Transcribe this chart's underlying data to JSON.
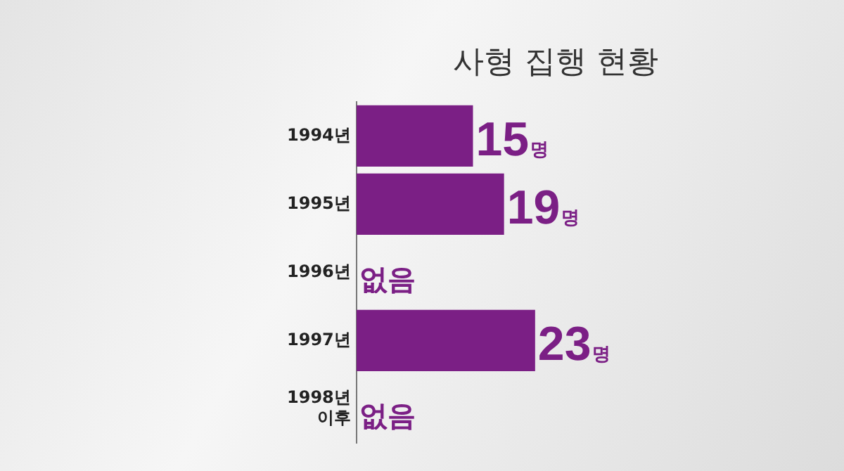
{
  "chart_data": {
    "type": "bar",
    "orientation": "horizontal",
    "title": "사형 집행 현황",
    "categories": [
      "1994년",
      "1995년",
      "1996년",
      "1997년",
      "1998년\n이후"
    ],
    "values": [
      15,
      19,
      0,
      23,
      0
    ],
    "color": "#7b1f85",
    "value_labels": [
      "15명",
      "19명",
      "없음",
      "23명",
      "없음"
    ],
    "legend": false
  }
}
